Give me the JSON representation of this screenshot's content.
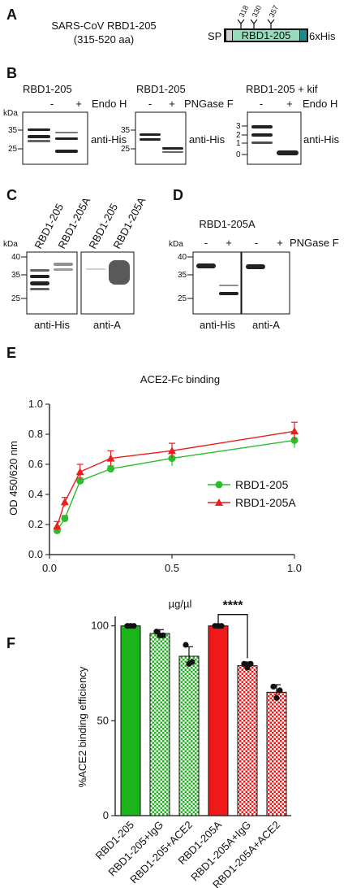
{
  "panels": {
    "A": "A",
    "B": "B",
    "C": "C",
    "D": "D",
    "E": "E",
    "F": "F"
  },
  "panelA": {
    "title_line1": "SARS-CoV RBD1-205",
    "title_line2": "(315-520 aa)",
    "sp": "SP",
    "rbd": "RBD1-205",
    "his": "6xHis",
    "sites": [
      "318",
      "330",
      "357"
    ]
  },
  "panelB": {
    "blots": [
      {
        "title": "RBD1-205",
        "enzyme": "Endo H",
        "signs": [
          "-",
          "+"
        ],
        "kda": "kDa",
        "markers": [
          "35",
          "25"
        ],
        "antibody": "anti-His"
      },
      {
        "title": "RBD1-205",
        "enzyme": "PNGase F",
        "signs": [
          "-",
          "+"
        ],
        "kda": "kDa",
        "markers": [
          "35",
          "25"
        ],
        "antibody": "anti-His"
      },
      {
        "title": "RBD1-205 + kif",
        "enzyme": "Endo H",
        "signs": [
          "-",
          "+"
        ],
        "markers": [
          "3",
          "2",
          "1",
          "0"
        ],
        "antibody": "anti-His"
      }
    ]
  },
  "panelC": {
    "kda": "kDa",
    "markers": [
      "40",
      "35",
      "25"
    ],
    "lanes": [
      "RBD1-205",
      "RBD1-205A",
      "RBD1-205",
      "RBD1-205A"
    ],
    "antibodies": [
      "anti-His",
      "anti-A"
    ]
  },
  "panelD": {
    "title": "RBD1-205A",
    "kda": "kDa",
    "markers": [
      "40",
      "35",
      "25"
    ],
    "signs": [
      "-",
      "+",
      "-",
      "+"
    ],
    "enzyme": "PNGase F",
    "antibodies": [
      "anti-His",
      "anti-A"
    ]
  },
  "chart_data": [
    {
      "type": "line",
      "title": "ACE2-Fc binding",
      "xlabel": "µg/µl",
      "ylabel": "OD 450/620 nm",
      "xlim": [
        0,
        1.0
      ],
      "ylim": [
        0,
        1.0
      ],
      "xticks": [
        "0.0",
        "0.5",
        "1.0"
      ],
      "yticks": [
        "0.0",
        "0.2",
        "0.4",
        "0.6",
        "0.8",
        "1.0"
      ],
      "x": [
        0.03125,
        0.0625,
        0.125,
        0.25,
        0.5,
        1.0
      ],
      "series": [
        {
          "name": "RBD1-205",
          "color": "#2bbd2b",
          "marker": "circle",
          "values": [
            0.16,
            0.24,
            0.49,
            0.57,
            0.64,
            0.76
          ],
          "errors": [
            0.02,
            0.02,
            0.02,
            0.02,
            0.05,
            0.05
          ]
        },
        {
          "name": "RBD1-205A",
          "color": "#ee1c1c",
          "marker": "triangle",
          "values": [
            0.19,
            0.35,
            0.55,
            0.64,
            0.69,
            0.82
          ],
          "errors": [
            0.03,
            0.03,
            0.05,
            0.05,
            0.05,
            0.06
          ]
        }
      ],
      "legend": "right"
    },
    {
      "type": "bar",
      "ylabel": "%ACE2 binding efficiency",
      "ylim": [
        0,
        105
      ],
      "yticks": [
        "0",
        "50",
        "100"
      ],
      "categories": [
        "RBD1-205",
        "RBD1-205+IgG",
        "RBD1-205+ACE2",
        "RBD1-205A",
        "RBD1-205A+IgG",
        "RBD1-205A+ACE2"
      ],
      "values": [
        100,
        96,
        84,
        100,
        79,
        65
      ],
      "errors": [
        0,
        2,
        5,
        0,
        2,
        4
      ],
      "colors": [
        "#1bb51b",
        "#1bb51b",
        "#1bb51b",
        "#f01818",
        "#f01818",
        "#f01818"
      ],
      "patterns": [
        "solid",
        "check",
        "check",
        "solid",
        "check",
        "check"
      ],
      "points": [
        [
          100,
          100,
          100
        ],
        [
          97,
          95,
          95
        ],
        [
          90,
          80,
          81
        ],
        [
          100,
          100,
          100
        ],
        [
          80,
          78,
          80
        ],
        [
          68,
          62,
          66
        ]
      ],
      "significance": "****"
    }
  ]
}
